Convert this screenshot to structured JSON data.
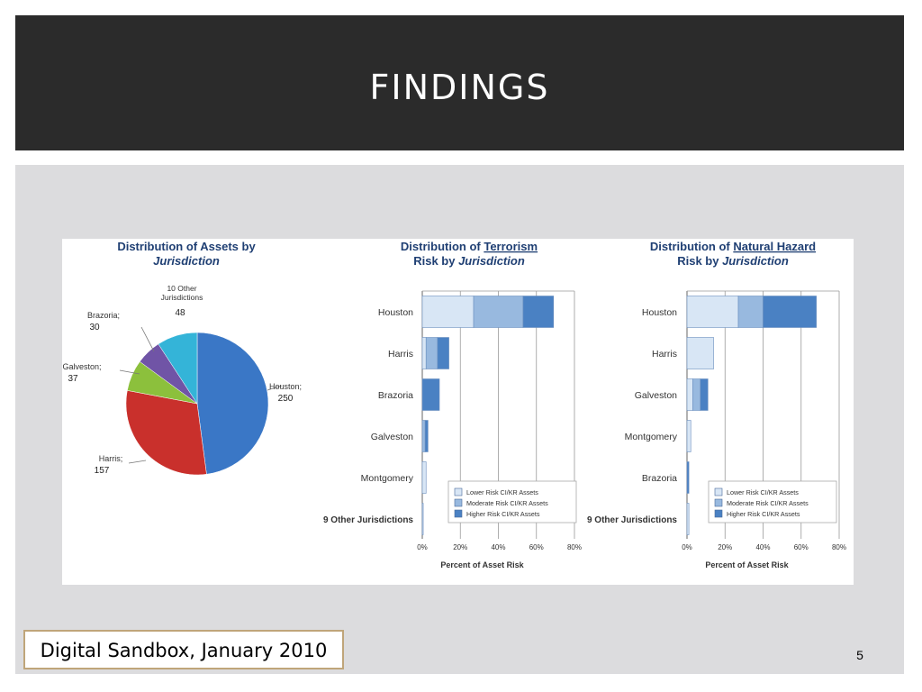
{
  "slide": {
    "title": "FINDINGS",
    "footer": "Digital Sandbox, January 2010",
    "page_number": "5"
  },
  "chart_data": [
    {
      "type": "pie",
      "title": "Distribution of Assets by",
      "title_italic": "Jurisdiction",
      "slices": [
        {
          "label": "Houston;",
          "value": 250,
          "color": "#3a77c6"
        },
        {
          "label": "Harris;",
          "value": 157,
          "color": "#c9302c"
        },
        {
          "label": "Galveston;",
          "value": 37,
          "color": "#8cc03c"
        },
        {
          "label": "Brazoria;",
          "value": 30,
          "color": "#7054a6"
        },
        {
          "label": "Jurisdictions",
          "label_top": "10 Other",
          "value": 48,
          "color": "#34b4d8"
        }
      ]
    },
    {
      "type": "bar",
      "orientation": "horizontal",
      "stacked": true,
      "title_prefix": "Distribution of",
      "title_underlined": "Terrorism",
      "title_line2": "Risk by",
      "title_italic": "Jurisdiction",
      "categories": [
        "Houston",
        "Harris",
        "Brazoria",
        "Galveston",
        "Montgomery",
        "9 Other Jurisdictions"
      ],
      "series": [
        {
          "name": "Lower Risk CI/KR Assets",
          "color": "#d8e6f5",
          "values": [
            27,
            2,
            0,
            0,
            2,
            0.5
          ]
        },
        {
          "name": "Moderate Risk CI/KR Assets",
          "color": "#98b9df",
          "values": [
            26,
            6,
            0,
            1.5,
            0,
            0
          ]
        },
        {
          "name": "Higher Risk CI/KR Assets",
          "color": "#4a81c3",
          "values": [
            16,
            6,
            9,
            1.5,
            0,
            0
          ]
        }
      ],
      "xlim": [
        0,
        80
      ],
      "xticks": [
        "0%",
        "20%",
        "40%",
        "60%",
        "80%"
      ],
      "xlabel": "Percent of Asset Risk",
      "grid": true,
      "legend": "bottom-right"
    },
    {
      "type": "bar",
      "orientation": "horizontal",
      "stacked": true,
      "title_prefix": "Distribution of",
      "title_underlined": "Natural Hazard",
      "title_line2": "Risk by",
      "title_italic": "Jurisdiction",
      "categories": [
        "Houston",
        "Harris",
        "Galveston",
        "Montgomery",
        "Brazoria",
        "9 Other Jurisdictions"
      ],
      "series": [
        {
          "name": "Lower Risk CI/KR Assets",
          "color": "#d8e6f5",
          "values": [
            27,
            14,
            3,
            2,
            0,
            1
          ]
        },
        {
          "name": "Moderate Risk CI/KR Assets",
          "color": "#98b9df",
          "values": [
            13,
            0,
            4,
            0,
            0,
            0
          ]
        },
        {
          "name": "Higher Risk CI/KR Assets",
          "color": "#4a81c3",
          "values": [
            28,
            0,
            4,
            0,
            1,
            0
          ]
        }
      ],
      "xlim": [
        0,
        80
      ],
      "xticks": [
        "0%",
        "20%",
        "40%",
        "60%",
        "80%"
      ],
      "xlabel": "Percent of Asset Risk",
      "grid": true,
      "legend": "bottom-right"
    }
  ]
}
